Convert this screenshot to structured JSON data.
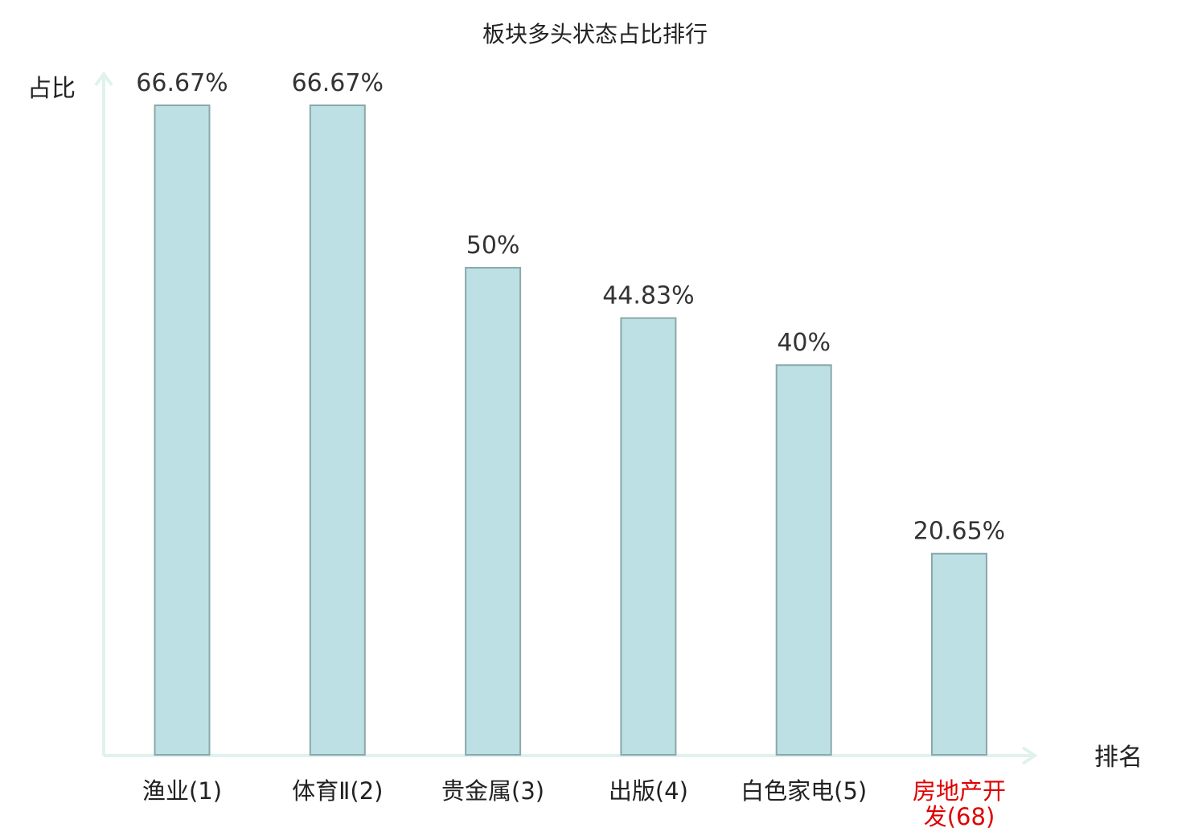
{
  "chart_data": {
    "type": "bar",
    "title": "板块多头状态占比排行",
    "ylabel": "占比",
    "xlabel": "排名",
    "categories": [
      {
        "name": "渔业",
        "rank": "(1)",
        "highlight": false
      },
      {
        "name": "体育Ⅱ",
        "rank": "(2)",
        "highlight": false
      },
      {
        "name": "贵金属",
        "rank": "(3)",
        "highlight": false
      },
      {
        "name": "出版",
        "rank": "(4)",
        "highlight": false
      },
      {
        "name": "白色家电",
        "rank": "(5)",
        "highlight": false
      },
      {
        "name": "房地产开发",
        "rank": "(68)",
        "highlight": true
      }
    ],
    "values": [
      66.67,
      66.67,
      50,
      44.83,
      40,
      20.65
    ],
    "value_labels": [
      "66.67%",
      "66.67%",
      "50%",
      "44.83%",
      "40%",
      "20.65%"
    ],
    "ylim": [
      0,
      66.67
    ],
    "grid": false,
    "colors": {
      "bar_fill": "#bce0e3",
      "bar_stroke": "#8aa8ab",
      "axis": "#dff2ee",
      "highlight": "#e00000"
    }
  }
}
